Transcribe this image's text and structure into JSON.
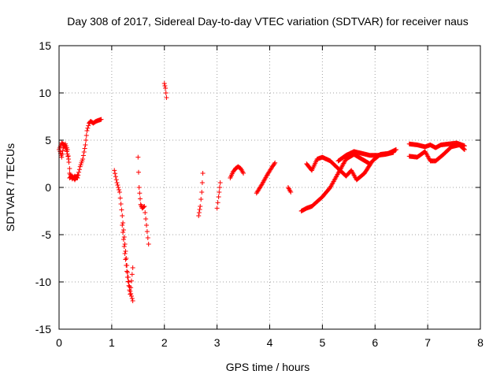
{
  "chart_data": {
    "type": "scatter",
    "title": "Day 308 of 2017, Sidereal Day-to-day VTEC variation (SDTVAR) for receiver naus",
    "xlabel": "GPS time / hours",
    "ylabel": "SDTVAR / TECUs",
    "xlim": [
      0,
      8
    ],
    "ylim": [
      -15,
      15
    ],
    "xticks": [
      "0",
      "1",
      "2",
      "3",
      "4",
      "5",
      "6",
      "7",
      "8"
    ],
    "yticks": [
      "-15",
      "-10",
      "-5",
      "0",
      "5",
      "10",
      "15"
    ],
    "grid": true,
    "marker": "+",
    "color": "#ff0000",
    "segments": [
      {
        "x": [
          0.0,
          0.05,
          0.1,
          0.15,
          0.18
        ],
        "y": [
          4.0,
          4.7,
          4.5,
          3.8,
          3.0
        ]
      },
      {
        "x": [
          0.02,
          0.05,
          0.08,
          0.12,
          0.16,
          0.2
        ],
        "y": [
          3.8,
          3.2,
          4.2,
          4.6,
          4.0,
          2.0
        ]
      },
      {
        "x": [
          0.2,
          0.25,
          0.3,
          0.35
        ],
        "y": [
          1.0,
          1.2,
          0.8,
          1.3
        ]
      },
      {
        "x": [
          0.2,
          0.25,
          0.3,
          0.35,
          0.4,
          0.45,
          0.5,
          0.53,
          0.57,
          0.6,
          0.65,
          0.7,
          0.75,
          0.8
        ],
        "y": [
          1.5,
          0.9,
          1.2,
          1.0,
          2.2,
          3.0,
          4.5,
          6.0,
          6.8,
          7.0,
          6.8,
          7.0,
          7.1,
          7.2
        ]
      },
      {
        "x": [
          1.05,
          1.1,
          1.15,
          1.2,
          1.25,
          1.3,
          1.35,
          1.4
        ],
        "y": [
          1.8,
          0.5,
          -0.5,
          -3.0,
          -6.0,
          -9.0,
          -11.0,
          -12.0
        ]
      },
      {
        "x": [
          1.2,
          1.25,
          1.3,
          1.35,
          1.4
        ],
        "y": [
          -4.0,
          -7.0,
          -9.5,
          -11.3,
          -8.5
        ]
      },
      {
        "x": [
          1.5,
          1.52,
          1.55,
          1.58,
          1.62,
          1.66,
          1.7
        ],
        "y": [
          3.2,
          0.0,
          -1.8,
          -2.2,
          -2.0,
          -4.0,
          -6.0
        ]
      },
      {
        "x": [
          2.0,
          2.02,
          2.04
        ],
        "y": [
          11.0,
          10.5,
          9.5
        ]
      },
      {
        "x": [
          2.65,
          2.68,
          2.71,
          2.73
        ],
        "y": [
          -3.0,
          -2.0,
          -0.5,
          1.5
        ]
      },
      {
        "x": [
          3.0,
          3.03,
          3.06
        ],
        "y": [
          -2.2,
          -1.0,
          0.5
        ]
      },
      {
        "x": [
          3.25,
          3.3,
          3.35,
          3.4,
          3.45,
          3.5
        ],
        "y": [
          1.0,
          1.6,
          2.0,
          2.2,
          2.0,
          1.5
        ]
      },
      {
        "x": [
          3.75,
          3.85,
          3.95,
          4.05,
          4.1
        ],
        "y": [
          -0.6,
          0.3,
          1.3,
          2.2,
          2.6
        ]
      },
      {
        "x": [
          4.35,
          4.4
        ],
        "y": [
          0.0,
          -0.5
        ]
      },
      {
        "x": [
          4.6,
          4.7,
          4.8,
          4.9,
          5.0,
          5.15,
          5.3,
          5.45,
          5.6,
          5.75,
          5.9
        ],
        "y": [
          -2.5,
          -2.2,
          -2.0,
          -1.5,
          -1.0,
          0.0,
          1.5,
          3.0,
          3.5,
          3.0,
          2.5
        ]
      },
      {
        "x": [
          4.7,
          4.8,
          4.9,
          5.0,
          5.15,
          5.3,
          5.45,
          5.55,
          5.65,
          5.8,
          5.95,
          6.1,
          6.25,
          6.4
        ],
        "y": [
          2.5,
          1.8,
          3.0,
          3.2,
          2.8,
          2.0,
          1.2,
          1.8,
          0.8,
          1.5,
          2.8,
          3.5,
          3.6,
          4.0
        ]
      },
      {
        "x": [
          5.3,
          5.45,
          5.6,
          5.75,
          5.9,
          6.05,
          6.2,
          6.35
        ],
        "y": [
          2.8,
          3.4,
          3.8,
          3.6,
          3.4,
          3.4,
          3.5,
          3.7
        ]
      },
      {
        "x": [
          6.65,
          6.8,
          6.95,
          7.05,
          7.15,
          7.25,
          7.4,
          7.55,
          7.7
        ],
        "y": [
          4.6,
          4.5,
          4.3,
          4.5,
          4.2,
          4.5,
          4.6,
          4.7,
          4.4
        ]
      },
      {
        "x": [
          6.65,
          6.8,
          6.95,
          7.05,
          7.15,
          7.3,
          7.45,
          7.6,
          7.7
        ],
        "y": [
          3.3,
          3.2,
          3.8,
          2.8,
          2.8,
          3.5,
          4.3,
          4.5,
          4.0
        ]
      }
    ]
  }
}
